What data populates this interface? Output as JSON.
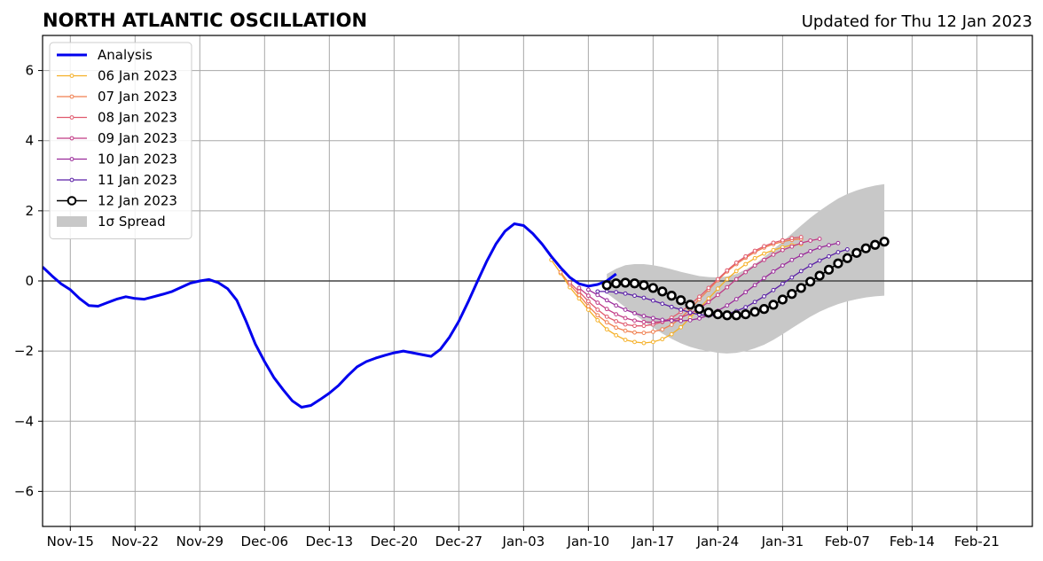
{
  "chart_data": {
    "type": "line",
    "title": "NORTH ATLANTIC OSCILLATION",
    "subtitle": "Updated for Thu 12 Jan 2023",
    "xlabel": "",
    "ylabel": "",
    "x_is_date": true,
    "xlim": [
      "2022-11-12",
      "2023-02-27"
    ],
    "ylim": [
      -7,
      7
    ],
    "yticks": [
      -6,
      -4,
      -2,
      0,
      2,
      4,
      6
    ],
    "xticks": [
      {
        "date": "2022-11-15",
        "label": "Nov-15"
      },
      {
        "date": "2022-11-22",
        "label": "Nov-22"
      },
      {
        "date": "2022-11-29",
        "label": "Nov-29"
      },
      {
        "date": "2022-12-06",
        "label": "Dec-06"
      },
      {
        "date": "2022-12-13",
        "label": "Dec-13"
      },
      {
        "date": "2022-12-20",
        "label": "Dec-20"
      },
      {
        "date": "2022-12-27",
        "label": "Dec-27"
      },
      {
        "date": "2023-01-03",
        "label": "Jan-03"
      },
      {
        "date": "2023-01-10",
        "label": "Jan-10"
      },
      {
        "date": "2023-01-17",
        "label": "Jan-17"
      },
      {
        "date": "2023-01-24",
        "label": "Jan-24"
      },
      {
        "date": "2023-01-31",
        "label": "Jan-31"
      },
      {
        "date": "2023-02-07",
        "label": "Feb-07"
      },
      {
        "date": "2023-02-14",
        "label": "Feb-14"
      },
      {
        "date": "2023-02-21",
        "label": "Feb-21"
      }
    ],
    "grid": true,
    "legend_position": "top-left",
    "series": [
      {
        "name": "Analysis",
        "color": "#0000ee",
        "style": "thick-line",
        "start": "2022-11-12",
        "values": [
          0.4,
          0.15,
          -0.08,
          -0.25,
          -0.5,
          -0.7,
          -0.72,
          -0.62,
          -0.52,
          -0.45,
          -0.5,
          -0.52,
          -0.45,
          -0.38,
          -0.3,
          -0.18,
          -0.06,
          0.0,
          0.04,
          -0.05,
          -0.22,
          -0.55,
          -1.15,
          -1.8,
          -2.3,
          -2.75,
          -3.1,
          -3.42,
          -3.6,
          -3.55,
          -3.38,
          -3.2,
          -2.98,
          -2.7,
          -2.45,
          -2.3,
          -2.2,
          -2.12,
          -2.05,
          -2.0,
          -2.05,
          -2.1,
          -2.15,
          -1.95,
          -1.6,
          -1.15,
          -0.6,
          -0.02,
          0.55,
          1.05,
          1.42,
          1.63,
          1.58,
          1.35,
          1.05,
          0.7,
          0.38,
          0.1,
          -0.08,
          -0.15,
          -0.1,
          0.0,
          0.2
        ]
      },
      {
        "name": "06 Jan 2023",
        "color": "#f5b027",
        "style": "dot-line",
        "start": "2023-01-06",
        "values": [
          0.6,
          0.22,
          -0.18,
          -0.5,
          -0.82,
          -1.12,
          -1.38,
          -1.55,
          -1.68,
          -1.74,
          -1.77,
          -1.74,
          -1.66,
          -1.52,
          -1.32,
          -1.05,
          -0.78,
          -0.5,
          -0.22,
          0.05,
          0.28,
          0.48,
          0.65,
          0.78,
          0.88,
          0.96,
          1.02,
          1.05
        ]
      },
      {
        "name": "07 Jan 2023",
        "color": "#f07f4f",
        "style": "dot-line",
        "start": "2023-01-07",
        "values": [
          0.25,
          -0.1,
          -0.4,
          -0.72,
          -0.98,
          -1.18,
          -1.33,
          -1.42,
          -1.47,
          -1.48,
          -1.45,
          -1.38,
          -1.25,
          -1.05,
          -0.8,
          -0.52,
          -0.25,
          0.02,
          0.27,
          0.48,
          0.66,
          0.82,
          0.95,
          1.05,
          1.12,
          1.17,
          1.2
        ]
      },
      {
        "name": "08 Jan 2023",
        "color": "#e05a6e",
        "style": "dot-line",
        "start": "2023-01-08",
        "values": [
          -0.05,
          -0.3,
          -0.58,
          -0.82,
          -1.02,
          -1.15,
          -1.24,
          -1.28,
          -1.28,
          -1.24,
          -1.17,
          -1.05,
          -0.88,
          -0.68,
          -0.45,
          -0.2,
          0.05,
          0.3,
          0.52,
          0.7,
          0.86,
          0.99,
          1.09,
          1.16,
          1.22,
          1.25
        ]
      },
      {
        "name": "09 Jan 2023",
        "color": "#c13a85",
        "style": "dot-line",
        "start": "2023-01-09",
        "values": [
          -0.2,
          -0.42,
          -0.62,
          -0.8,
          -0.95,
          -1.06,
          -1.13,
          -1.17,
          -1.18,
          -1.16,
          -1.12,
          -1.04,
          -0.93,
          -0.78,
          -0.6,
          -0.4,
          -0.18,
          0.05,
          0.25,
          0.44,
          0.6,
          0.75,
          0.88,
          0.98,
          1.08,
          1.15,
          1.2
        ]
      },
      {
        "name": "10 Jan 2023",
        "color": "#9a2a9a",
        "style": "dot-line",
        "start": "2023-01-10",
        "values": [
          -0.25,
          -0.4,
          -0.55,
          -0.7,
          -0.82,
          -0.92,
          -1.0,
          -1.06,
          -1.11,
          -1.13,
          -1.14,
          -1.12,
          -1.07,
          -0.98,
          -0.85,
          -0.7,
          -0.52,
          -0.32,
          -0.12,
          0.08,
          0.27,
          0.44,
          0.6,
          0.73,
          0.85,
          0.95,
          1.02,
          1.08
        ]
      },
      {
        "name": "11 Jan 2023",
        "color": "#5a1fa6",
        "style": "dot-line",
        "start": "2023-01-11",
        "values": [
          -0.3,
          -0.3,
          -0.32,
          -0.36,
          -0.42,
          -0.48,
          -0.56,
          -0.65,
          -0.74,
          -0.82,
          -0.9,
          -0.96,
          -0.99,
          -0.98,
          -0.94,
          -0.86,
          -0.75,
          -0.6,
          -0.44,
          -0.26,
          -0.08,
          0.1,
          0.28,
          0.44,
          0.58,
          0.7,
          0.82,
          0.9
        ]
      },
      {
        "name": "12 Jan 2023",
        "color": "#000000",
        "style": "circle-line",
        "start": "2023-01-12",
        "values": [
          -0.12,
          -0.07,
          -0.05,
          -0.07,
          -0.12,
          -0.2,
          -0.3,
          -0.42,
          -0.55,
          -0.68,
          -0.8,
          -0.9,
          -0.95,
          -0.98,
          -0.98,
          -0.95,
          -0.88,
          -0.8,
          -0.68,
          -0.53,
          -0.37,
          -0.2,
          -0.02,
          0.15,
          0.32,
          0.5,
          0.65,
          0.8,
          0.93,
          1.03,
          1.12
        ]
      }
    ],
    "spread": {
      "name": "1σ Spread",
      "color": "#c8c8c8",
      "start": "2023-01-12",
      "upper": [
        0.2,
        0.35,
        0.45,
        0.48,
        0.48,
        0.45,
        0.4,
        0.33,
        0.26,
        0.2,
        0.14,
        0.11,
        0.1,
        0.13,
        0.2,
        0.32,
        0.48,
        0.68,
        0.9,
        1.12,
        1.35,
        1.58,
        1.8,
        2.0,
        2.18,
        2.35,
        2.48,
        2.58,
        2.66,
        2.72,
        2.76
      ],
      "lower": [
        -0.35,
        -0.55,
        -0.75,
        -0.95,
        -1.15,
        -1.33,
        -1.5,
        -1.65,
        -1.78,
        -1.88,
        -1.95,
        -2.0,
        -2.05,
        -2.07,
        -2.05,
        -2.0,
        -1.92,
        -1.82,
        -1.68,
        -1.52,
        -1.35,
        -1.18,
        -1.02,
        -0.88,
        -0.76,
        -0.66,
        -0.58,
        -0.52,
        -0.47,
        -0.44,
        -0.42
      ]
    }
  }
}
